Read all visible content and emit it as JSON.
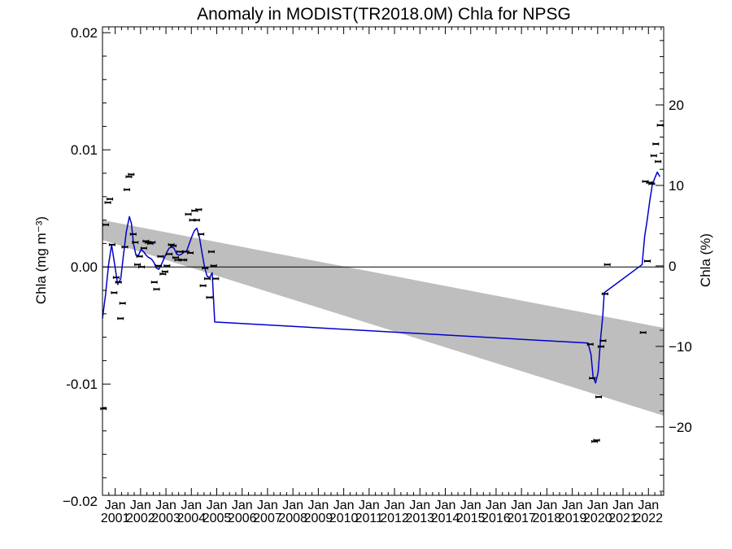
{
  "chart_data": {
    "type": "line",
    "title": "Anomaly in MODIST(TR2018.0M) Chla for NPSG",
    "ylabel_left": "Chla (mg m⁻³)",
    "ylabel_right": "Chla (%)",
    "xlabel": "",
    "x_range": [
      2000.5,
      2022.6
    ],
    "ylim_left": [
      -0.0195,
      0.0205
    ],
    "ylim_right": [
      -28.5,
      29.7
    ],
    "left_ticks": [
      {
        "value": 0.02,
        "label": "0.02"
      },
      {
        "value": 0.01,
        "label": "0.01"
      },
      {
        "value": 0.0,
        "label": "0.00"
      },
      {
        "value": -0.01,
        "label": "-0.01"
      },
      {
        "value": -0.02,
        "label": "−0.02"
      }
    ],
    "right_ticks": [
      {
        "value": 20,
        "label": "20"
      },
      {
        "value": 10,
        "label": "10"
      },
      {
        "value": 0,
        "label": "0"
      },
      {
        "value": -10,
        "label": "−10"
      },
      {
        "value": -20,
        "label": "−20"
      }
    ],
    "x_ticks": [
      {
        "value": 2001.0,
        "month": "Jan",
        "year": "2001"
      },
      {
        "value": 2002.0,
        "month": "Jan",
        "year": "2002"
      },
      {
        "value": 2003.0,
        "month": "Jan",
        "year": "2003"
      },
      {
        "value": 2004.0,
        "month": "Jan",
        "year": "2004"
      },
      {
        "value": 2005.0,
        "month": "Jan",
        "year": "2005"
      },
      {
        "value": 2006.0,
        "month": "Jan",
        "year": "2006"
      },
      {
        "value": 2007.0,
        "month": "Jan",
        "year": "2007"
      },
      {
        "value": 2008.0,
        "month": "Jan",
        "year": "2008"
      },
      {
        "value": 2009.0,
        "month": "Jan",
        "year": "2009"
      },
      {
        "value": 2010.0,
        "month": "Jan",
        "year": "2010"
      },
      {
        "value": 2011.0,
        "month": "Jan",
        "year": "2011"
      },
      {
        "value": 2012.0,
        "month": "Jan",
        "year": "2012"
      },
      {
        "value": 2013.0,
        "month": "Jan",
        "year": "2013"
      },
      {
        "value": 2014.0,
        "month": "Jan",
        "year": "2014"
      },
      {
        "value": 2015.0,
        "month": "Jan",
        "year": "2015"
      },
      {
        "value": 2016.0,
        "month": "Jan",
        "year": "2016"
      },
      {
        "value": 2017.0,
        "month": "Jan",
        "year": "2017"
      },
      {
        "value": 2018.0,
        "month": "Jan",
        "year": "2018"
      },
      {
        "value": 2019.0,
        "month": "Jan",
        "year": "2019"
      },
      {
        "value": 2020.0,
        "month": "Jan",
        "year": "2020"
      },
      {
        "value": 2021.0,
        "month": "Jan",
        "year": "2021"
      },
      {
        "value": 2022.0,
        "month": "Jan",
        "year": "2022"
      }
    ],
    "trend_band": {
      "x": [
        2000.5,
        2022.6
      ],
      "upper": [
        0.004,
        -0.0052
      ],
      "lower": [
        0.0023,
        -0.0127
      ]
    },
    "zero_line": 0.0,
    "monthly_anomalies": {
      "name": "",
      "points": [
        [
          2000.54,
          -0.0121
        ],
        [
          2000.63,
          0.0036
        ],
        [
          2000.71,
          0.0055
        ],
        [
          2000.79,
          0.0058
        ],
        [
          2000.88,
          0.0019
        ],
        [
          2000.96,
          -0.0022
        ],
        [
          2001.04,
          -0.0009
        ],
        [
          2001.13,
          -0.0013
        ],
        [
          2001.21,
          -0.0044
        ],
        [
          2001.29,
          -0.0031
        ],
        [
          2001.38,
          0.0017
        ],
        [
          2001.46,
          0.0066
        ],
        [
          2001.54,
          0.0077
        ],
        [
          2001.63,
          0.0079
        ],
        [
          2001.71,
          0.0028
        ],
        [
          2001.79,
          0.0021
        ],
        [
          2001.88,
          0.0002
        ],
        [
          2001.96,
          0.0009
        ],
        [
          2002.04,
          0.0
        ],
        [
          2002.13,
          0.0016
        ],
        [
          2002.21,
          0.0022
        ],
        [
          2002.29,
          0.0021
        ],
        [
          2002.38,
          0.002
        ],
        [
          2002.46,
          0.0021
        ],
        [
          2002.54,
          -0.0013
        ],
        [
          2002.63,
          -0.0019
        ],
        [
          2002.71,
          0.0001
        ],
        [
          2002.79,
          0.0009
        ],
        [
          2002.88,
          -0.0006
        ],
        [
          2002.96,
          -0.0004
        ],
        [
          2003.04,
          0.0001
        ],
        [
          2003.13,
          0.0011
        ],
        [
          2003.21,
          0.0019
        ],
        [
          2003.29,
          0.0018
        ],
        [
          2003.38,
          0.0008
        ],
        [
          2003.46,
          0.0006
        ],
        [
          2003.54,
          0.0013
        ],
        [
          2003.63,
          0.0006
        ],
        [
          2003.71,
          0.0006
        ],
        [
          2003.79,
          0.0013
        ],
        [
          2003.88,
          0.0045
        ],
        [
          2003.96,
          0.0012
        ],
        [
          2004.04,
          0.004
        ],
        [
          2004.13,
          0.0048
        ],
        [
          2004.21,
          0.004
        ],
        [
          2004.29,
          0.0049
        ],
        [
          2004.38,
          0.0028
        ],
        [
          2004.46,
          -0.0016
        ],
        [
          2004.54,
          -0.0001
        ],
        [
          2004.63,
          -0.001
        ],
        [
          2004.71,
          -0.0026
        ],
        [
          2004.79,
          0.0013
        ],
        [
          2004.88,
          0.0001
        ],
        [
          2004.96,
          -0.001
        ],
        [
          2019.71,
          -0.0066
        ],
        [
          2019.79,
          -0.0095
        ],
        [
          2019.88,
          -0.0149
        ],
        [
          2019.96,
          -0.0148
        ],
        [
          2020.04,
          -0.0111
        ],
        [
          2020.13,
          -0.0068
        ],
        [
          2020.21,
          -0.0063
        ],
        [
          2020.29,
          -0.0023
        ],
        [
          2020.38,
          0.0002
        ],
        [
          2021.79,
          -0.0056
        ],
        [
          2021.88,
          0.0073
        ],
        [
          2021.96,
          0.0005
        ],
        [
          2022.04,
          0.0072
        ],
        [
          2022.13,
          0.0071
        ],
        [
          2022.21,
          0.0095
        ],
        [
          2022.29,
          0.0105
        ],
        [
          2022.38,
          0.009
        ],
        [
          2022.46,
          0.0121
        ]
      ]
    },
    "smoothed": {
      "name": "",
      "color": "#0000cc",
      "points": [
        [
          2000.5,
          -0.0044
        ],
        [
          2000.62,
          -0.0024
        ],
        [
          2000.74,
          0.0002
        ],
        [
          2000.86,
          0.0019
        ],
        [
          2000.98,
          0.0002
        ],
        [
          2001.1,
          -0.0015
        ],
        [
          2001.22,
          -0.001
        ],
        [
          2001.32,
          0.0009
        ],
        [
          2001.44,
          0.003
        ],
        [
          2001.56,
          0.0043
        ],
        [
          2001.64,
          0.0037
        ],
        [
          2001.72,
          0.002
        ],
        [
          2001.82,
          0.001
        ],
        [
          2001.92,
          0.001
        ],
        [
          2002.02,
          0.0015
        ],
        [
          2002.12,
          0.0013
        ],
        [
          2002.22,
          0.001
        ],
        [
          2002.32,
          0.0008
        ],
        [
          2002.42,
          0.0007
        ],
        [
          2002.52,
          0.0004
        ],
        [
          2002.62,
          -0.0001
        ],
        [
          2002.72,
          -0.0002
        ],
        [
          2002.82,
          0.0002
        ],
        [
          2002.92,
          0.0007
        ],
        [
          2003.02,
          0.0012
        ],
        [
          2003.12,
          0.0016
        ],
        [
          2003.22,
          0.0017
        ],
        [
          2003.32,
          0.0016
        ],
        [
          2003.42,
          0.0011
        ],
        [
          2003.52,
          0.001
        ],
        [
          2003.62,
          0.0011
        ],
        [
          2003.72,
          0.0013
        ],
        [
          2003.82,
          0.0014
        ],
        [
          2003.92,
          0.002
        ],
        [
          2004.02,
          0.0026
        ],
        [
          2004.12,
          0.0031
        ],
        [
          2004.22,
          0.0033
        ],
        [
          2004.32,
          0.0025
        ],
        [
          2004.42,
          0.0012
        ],
        [
          2004.52,
          0.0
        ],
        [
          2004.62,
          -0.0008
        ],
        [
          2004.72,
          -0.0009
        ],
        [
          2004.82,
          -0.0005
        ],
        [
          2004.92,
          -0.0047
        ],
        [
          2019.62,
          -0.0065
        ],
        [
          2019.74,
          -0.0075
        ],
        [
          2019.82,
          -0.0094
        ],
        [
          2019.92,
          -0.0099
        ],
        [
          2020.02,
          -0.009
        ],
        [
          2020.12,
          -0.006
        ],
        [
          2020.2,
          -0.0042
        ],
        [
          2020.26,
          -0.0022
        ],
        [
          2021.75,
          0.0002
        ],
        [
          2021.85,
          0.0026
        ],
        [
          2021.95,
          0.004
        ],
        [
          2022.05,
          0.0056
        ],
        [
          2022.15,
          0.007
        ],
        [
          2022.25,
          0.0076
        ],
        [
          2022.35,
          0.0081
        ],
        [
          2022.45,
          0.0077
        ]
      ]
    },
    "colors": {
      "band": "#bebebe",
      "line": "#0000cc",
      "points": "#000000",
      "axis": "#000000"
    }
  }
}
